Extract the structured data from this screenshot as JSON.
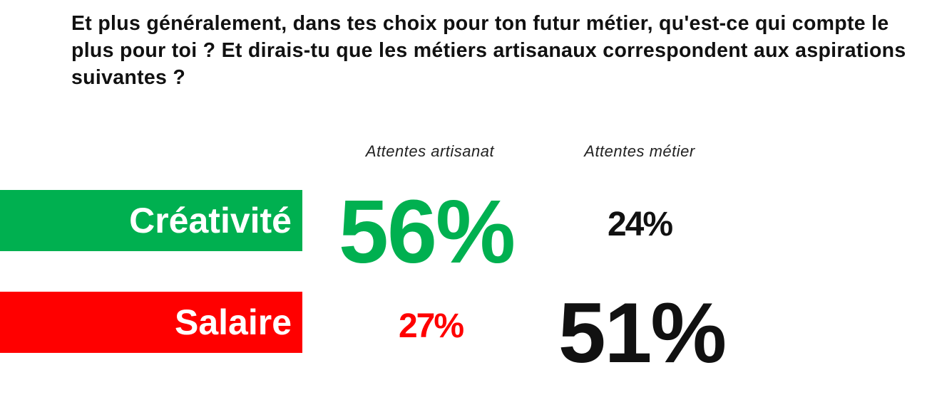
{
  "title": "Et plus généralement, dans tes choix pour ton futur métier, qu'est-ce qui compte le plus pour toi ? Et dirais-tu que les métiers artisanaux correspondent aux aspirations suivantes ?",
  "chart_data": {
    "type": "table",
    "columns": [
      "Attentes artisanat",
      "Attentes métier"
    ],
    "rows": [
      {
        "label": "Créativité",
        "color": "#00b050",
        "values": [
          "56%",
          "24%"
        ],
        "highlight_column": 0
      },
      {
        "label": "Salaire",
        "color": "#ff0000",
        "values": [
          "27%",
          "51%"
        ],
        "highlight_column": 1
      }
    ]
  },
  "colors": {
    "green": "#00b050",
    "red": "#ff0000",
    "text": "#111111"
  }
}
